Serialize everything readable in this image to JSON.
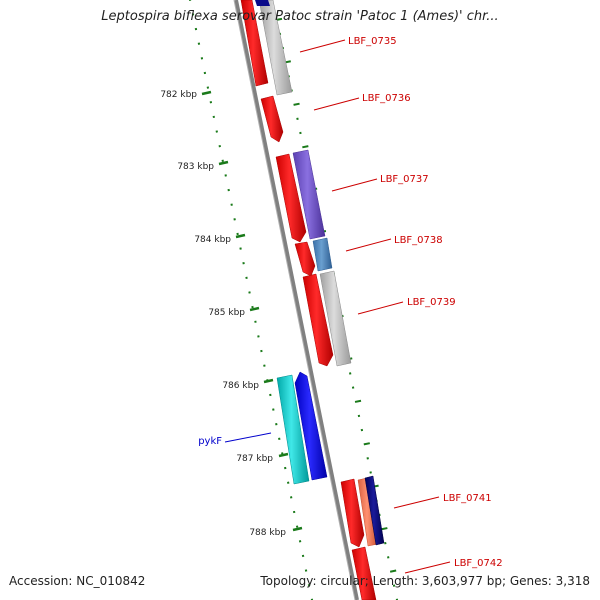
{
  "title": "Leptospira biflexa serovar Patoc strain 'Patoc 1 (Ames)' chr...",
  "footer": {
    "accession": "Accession: NC_010842",
    "summary": "Topology: circular; Length: 3,603,977 bp; Genes: 3,318"
  },
  "colors": {
    "backbone": "#808080",
    "tick": "#1a7a1a",
    "forward_gene": "#ff0000",
    "gene_label": "#cc0000",
    "highlight_label": "#0000cc"
  },
  "ruler": [
    {
      "label": "782 kbp"
    },
    {
      "label": "783 kbp"
    },
    {
      "label": "784 kbp"
    },
    {
      "label": "785 kbp"
    },
    {
      "label": "786 kbp"
    },
    {
      "label": "787 kbp"
    },
    {
      "label": "788 kbp"
    }
  ],
  "genes": [
    {
      "name": "LBF_0735",
      "label_color": "#cc0000"
    },
    {
      "name": "LBF_0736",
      "label_color": "#cc0000"
    },
    {
      "name": "LBF_0737",
      "label_color": "#cc0000"
    },
    {
      "name": "LBF_0738",
      "label_color": "#cc0000"
    },
    {
      "name": "LBF_0739",
      "label_color": "#cc0000"
    },
    {
      "name": "pykF",
      "label_color": "#0000cc"
    },
    {
      "name": "LBF_0741",
      "label_color": "#cc0000"
    },
    {
      "name": "LBF_0742",
      "label_color": "#cc0000"
    }
  ]
}
